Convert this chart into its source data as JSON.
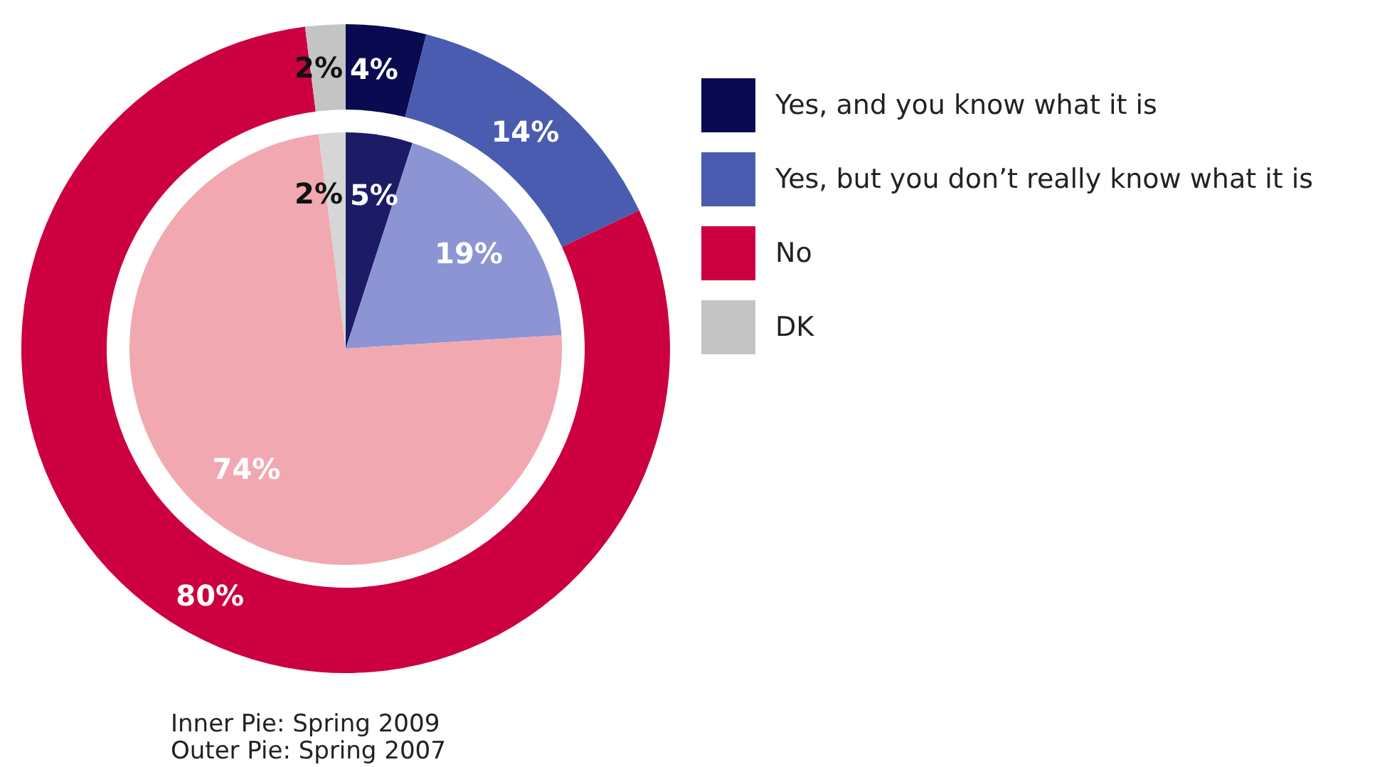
{
  "chart_data": {
    "type": "donut",
    "categories": [
      "Yes, and you know what it is",
      "Yes, but you don’t really know what it is",
      "No",
      "DK"
    ],
    "series": [
      {
        "type": "pie",
        "values": [
          5,
          19,
          74,
          2
        ],
        "value_labels": [
          "5%",
          "19%",
          "74%",
          "2%"
        ],
        "colors": [
          "#1c1c66",
          "#8c94d4",
          "#f2a8b0",
          "#d6d6d6"
        ]
      },
      {
        "type": "donut",
        "values": [
          4,
          14,
          80,
          2
        ],
        "value_labels": [
          "4%",
          "14%",
          "80%",
          "2%"
        ],
        "colors": [
          "#0a0a50",
          "#4a5cb0",
          "#cc0040",
          "#c4c4c4"
        ]
      }
    ],
    "legend": "top right",
    "annotations": [
      "Inner Pie: Spring 2009",
      "Outer Pie: Spring 2007"
    ]
  }
}
